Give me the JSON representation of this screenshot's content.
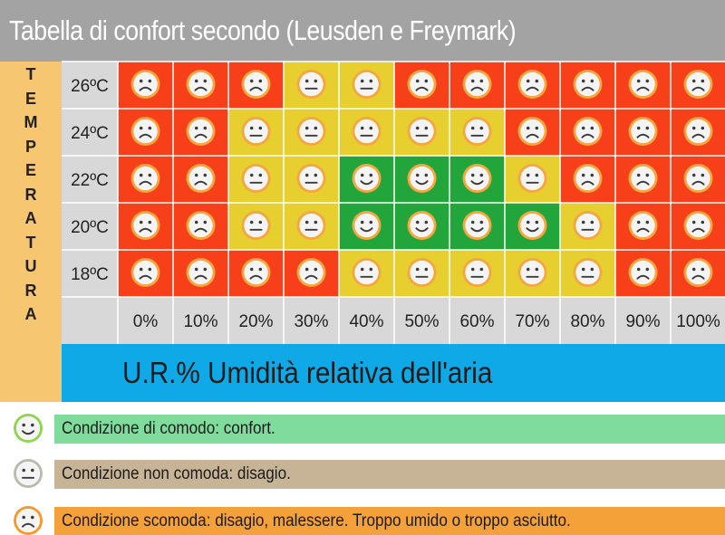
{
  "title": "Tabella di confort secondo (Leusden e Freymark)",
  "chart_data": {
    "type": "heatmap",
    "ylabel": "TEMPERATURA",
    "xlabel": "U.R.% Umidità relativa dell'aria",
    "y_categories": [
      "26ºC",
      "24ºC",
      "22ºC",
      "20ºC",
      "18ºC"
    ],
    "x_categories": [
      "0%",
      "10%",
      "20%",
      "30%",
      "40%",
      "50%",
      "60%",
      "70%",
      "80%",
      "90%",
      "100%"
    ],
    "levels": {
      "confort": {
        "color": "#22a63c",
        "face": "smile"
      },
      "disagio": {
        "color": "#e6cf2e",
        "face": "neutral"
      },
      "malessere": {
        "color": "#f7401a",
        "face": "frown"
      }
    },
    "values": [
      [
        "malessere",
        "malessere",
        "malessere",
        "disagio",
        "disagio",
        "malessere",
        "malessere",
        "malessere",
        "malessere",
        "malessere",
        "malessere"
      ],
      [
        "malessere",
        "malessere",
        "disagio",
        "disagio",
        "disagio",
        "disagio",
        "disagio",
        "malessere",
        "malessere",
        "malessere",
        "malessere"
      ],
      [
        "malessere",
        "malessere",
        "disagio",
        "disagio",
        "confort",
        "confort",
        "confort",
        "disagio",
        "malessere",
        "malessere",
        "malessere"
      ],
      [
        "malessere",
        "malessere",
        "disagio",
        "disagio",
        "confort",
        "confort",
        "confort",
        "confort",
        "disagio",
        "malessere",
        "malessere"
      ],
      [
        "malessere",
        "malessere",
        "malessere",
        "malessere",
        "disagio",
        "disagio",
        "disagio",
        "disagio",
        "disagio",
        "malessere",
        "malessere"
      ]
    ]
  },
  "legend": [
    {
      "text": "Condizione di comodo: confort.",
      "bar_color": "#7fdc9c",
      "ring_color": "#8fd64e",
      "face": "smile"
    },
    {
      "text": "Condizione non comoda: disagio.",
      "bar_color": "#c7b497",
      "ring_color": "#b9b9b0",
      "face": "neutral"
    },
    {
      "text": "Condizione scomoda: disagio, malessere. Troppo umido o troppo asciutto.",
      "bar_color": "#f5a13a",
      "ring_color": "#f59a2a",
      "face": "frown"
    }
  ]
}
